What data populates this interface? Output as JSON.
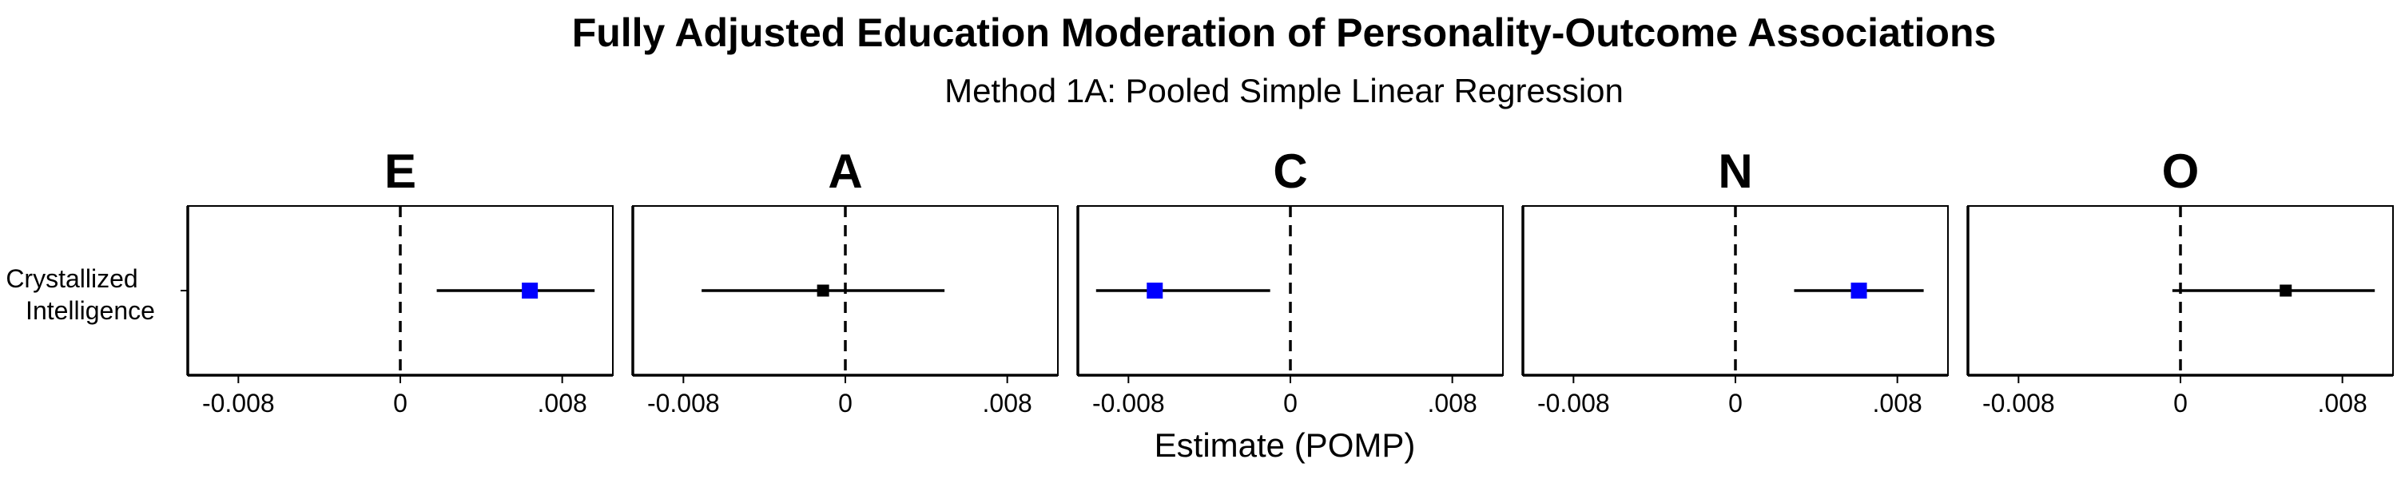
{
  "chart_data": {
    "type": "forest",
    "title": "Fully Adjusted Education Moderation of Personality-Outcome Associations",
    "subtitle": "Method 1A: Pooled Simple Linear Regression",
    "xlabel": "Estimate (POMP)",
    "row_label": "Crystallized Intelligence",
    "xlim": [
      -0.0105,
      0.0105
    ],
    "xticks": [
      {
        "value": -0.008,
        "label": "-0.008"
      },
      {
        "value": 0,
        "label": "0"
      },
      {
        "value": 0.008,
        "label": ".008"
      }
    ],
    "reference_line": 0,
    "colors": {
      "significant": "#0000ff",
      "nonsignificant": "#000000"
    },
    "panels": [
      {
        "name": "E",
        "estimate": 0.0064,
        "ci_low": 0.0018,
        "ci_high": 0.0096,
        "significant": true
      },
      {
        "name": "A",
        "estimate": -0.0011,
        "ci_low": -0.0071,
        "ci_high": 0.0049,
        "significant": false
      },
      {
        "name": "C",
        "estimate": -0.0067,
        "ci_low": -0.0096,
        "ci_high": -0.001,
        "significant": true
      },
      {
        "name": "N",
        "estimate": 0.0061,
        "ci_low": 0.0029,
        "ci_high": 0.0093,
        "significant": true
      },
      {
        "name": "O",
        "estimate": 0.0052,
        "ci_low": -0.0004,
        "ci_high": 0.0096,
        "significant": false
      }
    ]
  }
}
